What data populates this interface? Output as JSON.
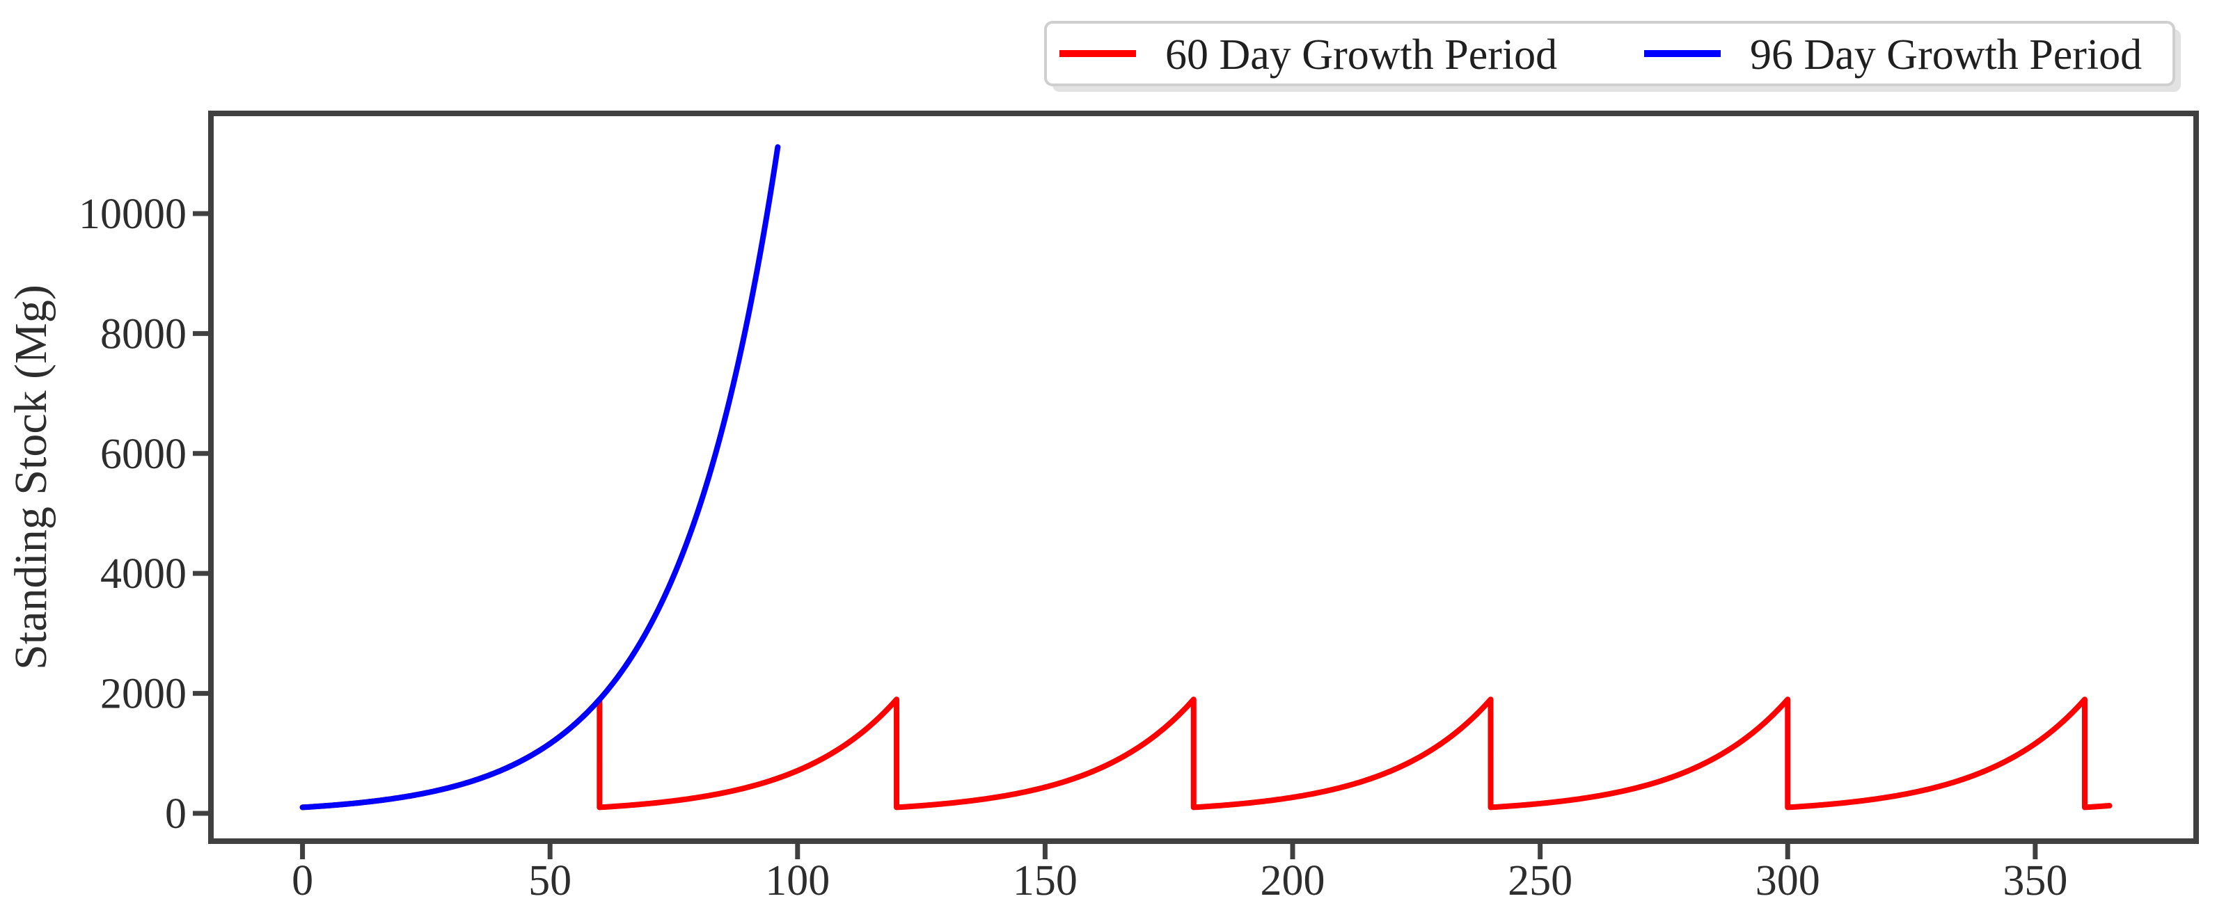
{
  "figure": {
    "description": "Line chart of standing stock over one year comparing two harvest schedules"
  },
  "axes": {
    "y_label": "Standing Stock (Mg)"
  },
  "legend": {
    "items": [
      {
        "label": "60 Day Growth Period",
        "color": "#ff0000"
      },
      {
        "label": "96 Day Growth Period",
        "color": "#0000ff"
      }
    ]
  },
  "colors": {
    "spine": "#404040",
    "tick_text": "#2d2d2d",
    "background": "#ffffff",
    "legend_border": "#cfcfcf",
    "red_series": "#ff0000",
    "blue_series": "#0000ff"
  },
  "chart_data": {
    "type": "line",
    "title": "",
    "xlabel": "",
    "ylabel": "Standing Stock (Mg)",
    "xlim": [
      -18.5,
      382.5
    ],
    "ylim": [
      -464,
      11670
    ],
    "x_ticks": [
      0,
      50,
      100,
      150,
      200,
      250,
      300,
      350
    ],
    "y_ticks": [
      0,
      2000,
      4000,
      6000,
      8000,
      10000
    ],
    "grid": false,
    "legend_position": "top-right above plot",
    "series": [
      {
        "name": "60 Day Growth Period",
        "color": "#ff0000",
        "model": "exponential_growth_with_periodic_harvest",
        "initial_stock_mg": 100,
        "daily_growth_rate": 0.049067,
        "harvest_period_days": 60,
        "t_start": 0,
        "t_end": 365,
        "peak_value_mg": 1900,
        "reset_value_mg": 100,
        "peak_days": [
          60,
          120,
          180,
          240,
          300,
          360
        ]
      },
      {
        "name": "96 Day Growth Period",
        "color": "#0000ff",
        "model": "exponential_growth_with_periodic_harvest",
        "initial_stock_mg": 100,
        "daily_growth_rate": 0.049067,
        "harvest_period_days": 96,
        "t_start": 0,
        "t_end": 96,
        "peak_value_mg": 11115,
        "reset_value_mg": 100,
        "peak_days": [
          96
        ]
      }
    ]
  }
}
